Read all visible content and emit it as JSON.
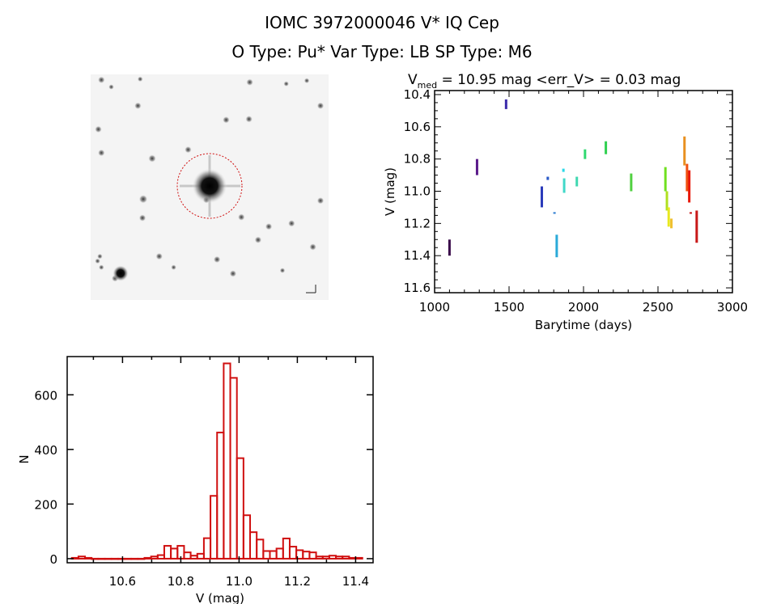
{
  "header": {
    "title_line1": "IOMC 3972000046    V* IQ Cep",
    "title_line2": "O Type: Pu*   Var Type: LB   SP Type: M6"
  },
  "image_cutout": {
    "description": "Sky image cutout centered on target star with red circle marker",
    "marker_color": "#d01010"
  },
  "chart_data": [
    {
      "type": "scatter",
      "name": "light-curve",
      "title_prefix": "V",
      "title_subscript": "med",
      "title_rest": " = 10.95 mag <err_V> = 0.03 mag",
      "xlabel": "Barytime (days)",
      "ylabel": "V (mag)",
      "xlim": [
        1000,
        3000
      ],
      "ylim": [
        10.375,
        11.63
      ],
      "y_inverted": true,
      "xticks": [
        1000,
        1500,
        2000,
        2500,
        3000
      ],
      "xtick_labels": [
        "1000",
        "1500",
        "2000",
        "2500",
        "3000"
      ],
      "yticks": [
        10.4,
        10.6,
        10.8,
        11.0,
        11.2,
        11.4,
        11.6
      ],
      "ytick_labels": [
        "10.4",
        "10.6",
        "10.8",
        "11.0",
        "11.2",
        "11.4",
        "11.6"
      ],
      "grid": false,
      "color_encoding": "time (rainbow: purple→red)",
      "series": [
        {
          "x": 1100,
          "y_range": [
            11.3,
            11.4
          ],
          "color": "#3a0a4a"
        },
        {
          "x": 1285,
          "y_range": [
            10.8,
            10.9
          ],
          "color": "#5a1a8a"
        },
        {
          "x": 1480,
          "y_range": [
            10.43,
            10.49
          ],
          "color": "#3a2aaa"
        },
        {
          "x": 1720,
          "y_range": [
            10.97,
            11.1
          ],
          "color": "#2a3aba"
        },
        {
          "x": 1760,
          "y_range": [
            10.91,
            10.93
          ],
          "color": "#2a5ac8"
        },
        {
          "x": 1805,
          "y_range": [
            11.13,
            11.14
          ],
          "color": "#2a7ad0"
        },
        {
          "x": 1820,
          "y_range": [
            11.27,
            11.41
          ],
          "color": "#2aaad8"
        },
        {
          "x": 1865,
          "y_range": [
            10.86,
            10.88
          ],
          "color": "#2ad8e8"
        },
        {
          "x": 1870,
          "y_range": [
            10.92,
            11.01
          ],
          "color": "#40d8c8"
        },
        {
          "x": 1955,
          "y_range": [
            10.91,
            10.97
          ],
          "color": "#40d8b0"
        },
        {
          "x": 2010,
          "y_range": [
            10.74,
            10.8
          ],
          "color": "#30d870"
        },
        {
          "x": 2150,
          "y_range": [
            10.69,
            10.77
          ],
          "color": "#30d050"
        },
        {
          "x": 2320,
          "y_range": [
            10.89,
            11.0
          ],
          "color": "#50d040"
        },
        {
          "x": 2550,
          "y_range": [
            10.85,
            11.0
          ],
          "color": "#70e020"
        },
        {
          "x": 2560,
          "y_range": [
            11.0,
            11.12
          ],
          "color": "#b0e020"
        },
        {
          "x": 2572,
          "y_range": [
            11.1,
            11.22
          ],
          "color": "#e8e820"
        },
        {
          "x": 2590,
          "y_range": [
            11.17,
            11.23
          ],
          "color": "#f0c030"
        },
        {
          "x": 2678,
          "y_range": [
            10.66,
            10.84
          ],
          "color": "#e89020"
        },
        {
          "x": 2695,
          "y_range": [
            10.83,
            11.0
          ],
          "color": "#f05010"
        },
        {
          "x": 2710,
          "y_range": [
            10.87,
            11.07
          ],
          "color": "#e81808"
        },
        {
          "x": 2720,
          "y_range": [
            11.13,
            11.13
          ],
          "color": "#c81818"
        },
        {
          "x": 2760,
          "y_range": [
            11.12,
            11.32
          ],
          "color": "#c81818"
        }
      ]
    },
    {
      "type": "bar",
      "name": "histogram",
      "xlabel": "V (mag)",
      "ylabel": "N",
      "xlim": [
        10.41,
        11.46
      ],
      "ylim": [
        -15,
        740
      ],
      "xticks": [
        10.6,
        10.8,
        11.0,
        11.2,
        11.4
      ],
      "xtick_labels": [
        "10.6",
        "10.8",
        "11.0",
        "11.2",
        "11.4"
      ],
      "yticks": [
        0,
        200,
        400,
        600
      ],
      "ytick_labels": [
        "0",
        "200",
        "400",
        "600"
      ],
      "grid": false,
      "bar_color": "#d01010",
      "bin_start": 10.426,
      "bin_width": 0.02266,
      "values": [
        3,
        8,
        3,
        0,
        0,
        0,
        0,
        0,
        0,
        0,
        0,
        3,
        8,
        13,
        47,
        37,
        47,
        23,
        11,
        18,
        75,
        230,
        462,
        715,
        662,
        368,
        159,
        97,
        70,
        28,
        28,
        37,
        74,
        44,
        31,
        26,
        23,
        8,
        8,
        11,
        8,
        8,
        3,
        3
      ]
    }
  ]
}
